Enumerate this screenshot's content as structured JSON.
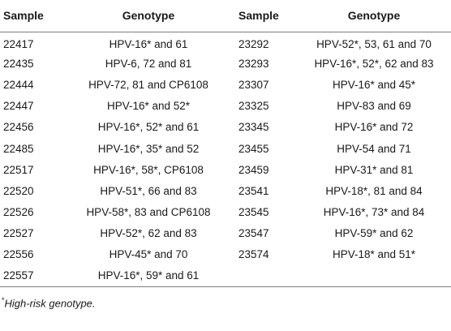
{
  "table": {
    "headers": [
      "Sample",
      "Genotype",
      "Sample",
      "Genotype"
    ],
    "left": [
      {
        "sample": "22417",
        "genotype": "HPV-16* and 61"
      },
      {
        "sample": "22435",
        "genotype": "HPV-6, 72 and 81"
      },
      {
        "sample": "22444",
        "genotype": "HPV-72, 81 and CP6108"
      },
      {
        "sample": "22447",
        "genotype": "HPV-16* and 52*"
      },
      {
        "sample": "22456",
        "genotype": "HPV-16*, 52* and 61"
      },
      {
        "sample": "22485",
        "genotype": "HPV-16*, 35* and 52"
      },
      {
        "sample": "22517",
        "genotype": "HPV-16*, 58*, CP6108"
      },
      {
        "sample": "22520",
        "genotype": "HPV-51*, 66 and 83"
      },
      {
        "sample": "22526",
        "genotype": "HPV-58*, 83 and CP6108"
      },
      {
        "sample": "22527",
        "genotype": "HPV-52*, 62 and 83"
      },
      {
        "sample": "22556",
        "genotype": "HPV-45* and 70"
      },
      {
        "sample": "22557",
        "genotype": "HPV-16*, 59* and 61"
      }
    ],
    "right": [
      {
        "sample": "23292",
        "genotype": "HPV-52*, 53, 61 and 70"
      },
      {
        "sample": "23293",
        "genotype": "HPV-16*, 52*, 62 and 83"
      },
      {
        "sample": "23307",
        "genotype": "HPV-16* and 45*"
      },
      {
        "sample": "23325",
        "genotype": "HPV-83 and 69"
      },
      {
        "sample": "23345",
        "genotype": "HPV-16* and 72"
      },
      {
        "sample": "23455",
        "genotype": "HPV-54 and 71"
      },
      {
        "sample": "23459",
        "genotype": "HPV-31* and 81"
      },
      {
        "sample": "23541",
        "genotype": "HPV-18*, 81 and 84"
      },
      {
        "sample": "23545",
        "genotype": "HPV-16*, 73* and 84"
      },
      {
        "sample": "23547",
        "genotype": "HPV-59* and 62"
      },
      {
        "sample": "23574",
        "genotype": "HPV-18* and 51*"
      },
      {
        "sample": "",
        "genotype": ""
      }
    ]
  },
  "footnote": {
    "marker": "*",
    "text": "High-risk genotype."
  }
}
